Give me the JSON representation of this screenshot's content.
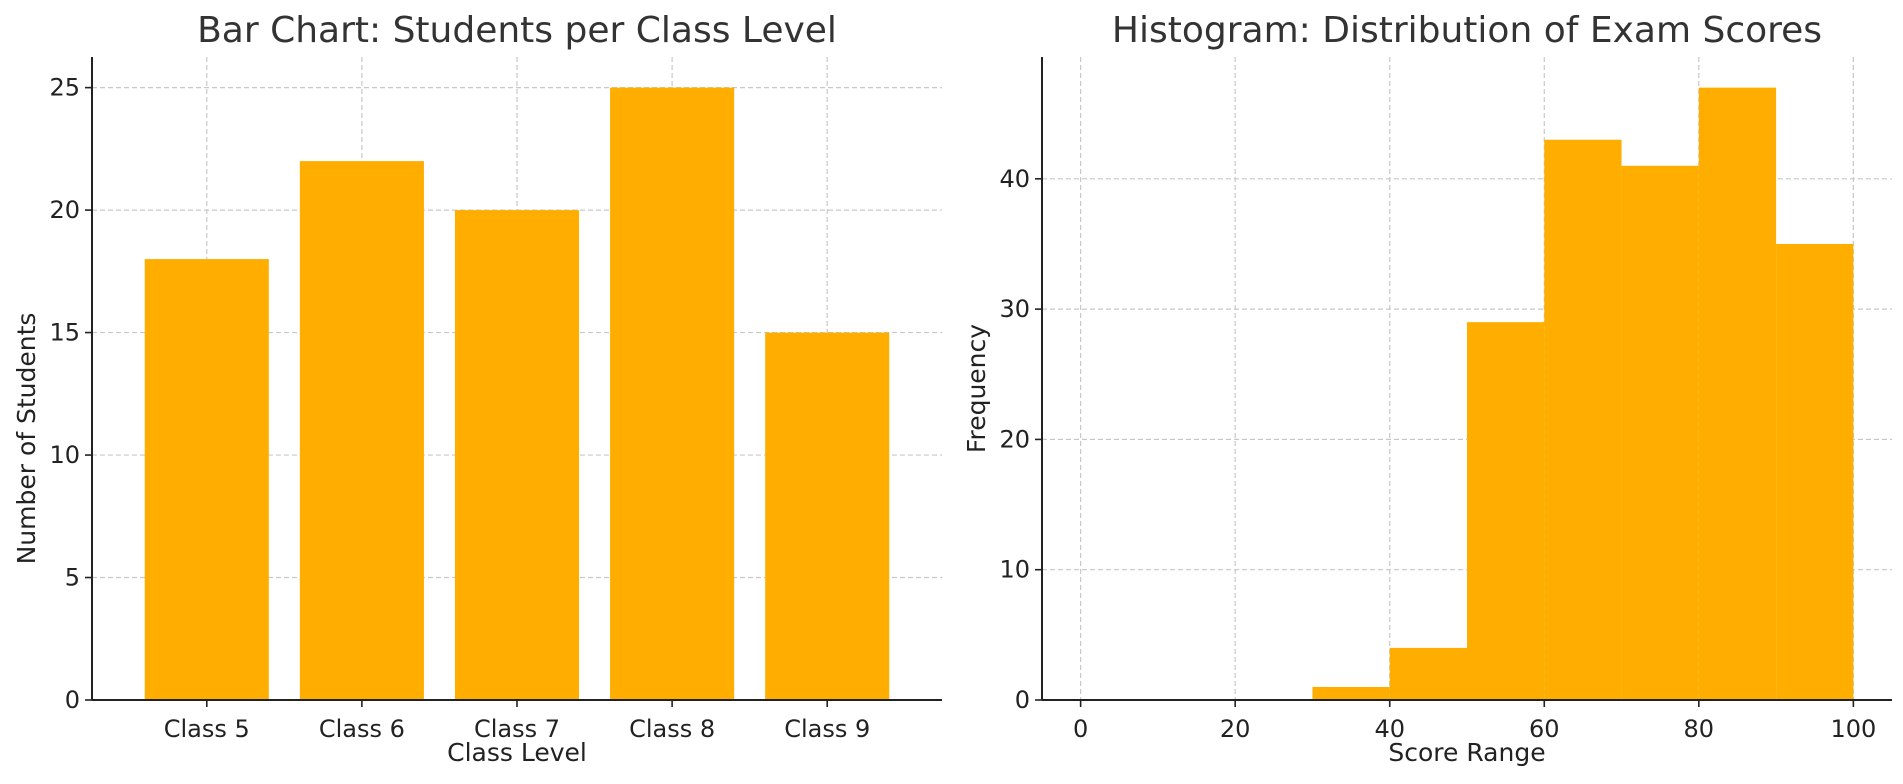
{
  "colors": {
    "bar": "#FFAE00",
    "background": "#FFFFFF"
  },
  "chart_data": [
    {
      "type": "bar",
      "title": "Bar Chart: Students per Class Level",
      "xlabel": "Class Level",
      "ylabel": "Number of Students",
      "categories": [
        "Class 5",
        "Class 6",
        "Class 7",
        "Class 8",
        "Class 9"
      ],
      "values": [
        18,
        22,
        20,
        25,
        15
      ],
      "ylim": [
        0,
        26.25
      ],
      "yticks": [
        0,
        5,
        10,
        15,
        20,
        25
      ],
      "grid": true,
      "color": "#FFAE00"
    },
    {
      "type": "bar",
      "title": "Histogram: Distribution of Exam Scores",
      "xlabel": "Score Range",
      "ylabel": "Frequency",
      "bin_edges": [
        0,
        10,
        20,
        30,
        40,
        50,
        60,
        70,
        80,
        90,
        100
      ],
      "values": [
        0,
        0,
        0,
        1,
        4,
        29,
        43,
        41,
        47,
        35
      ],
      "xlim": [
        -5,
        105
      ],
      "ylim": [
        0,
        49.35
      ],
      "xticks": [
        0,
        20,
        40,
        60,
        80,
        100
      ],
      "yticks": [
        0,
        10,
        20,
        30,
        40
      ],
      "grid": true,
      "color": "#FFAE00"
    }
  ]
}
